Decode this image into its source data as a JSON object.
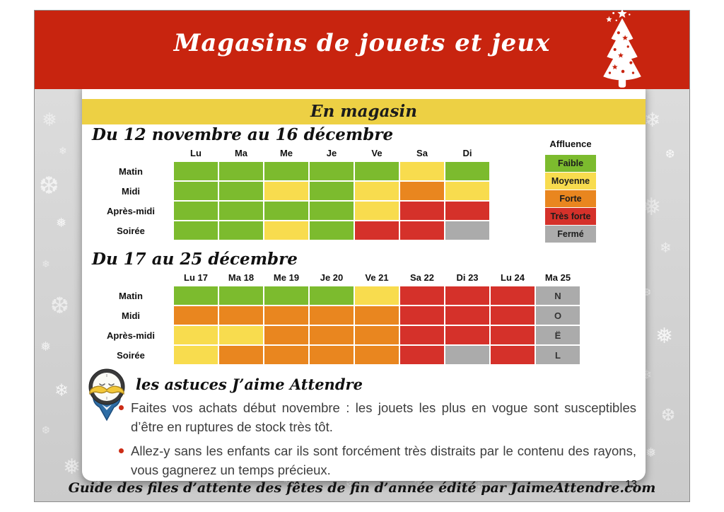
{
  "header": {
    "title": "Magasins de jouets et jeux"
  },
  "affluence_colors": {
    "faible": "#7cbb2e",
    "moyenne": "#f8dc4e",
    "forte": "#e9861f",
    "tres_forte": "#d5312a",
    "ferme": "#ababab"
  },
  "card": {
    "banner": "En magasin",
    "legend": {
      "title": "Affluence",
      "items": [
        {
          "label": "Faible",
          "level": "faible"
        },
        {
          "label": "Moyenne",
          "level": "moyenne"
        },
        {
          "label": "Forte",
          "level": "forte"
        },
        {
          "label": "Très forte",
          "level": "tres_forte"
        },
        {
          "label": "Fermé",
          "level": "ferme"
        }
      ]
    },
    "sections": [
      {
        "title": "Du 12 novembre au 16 décembre",
        "columns": [
          "Lu",
          "Ma",
          "Me",
          "Je",
          "Ve",
          "Sa",
          "Di"
        ],
        "rows": [
          "Matin",
          "Midi",
          "Après-midi",
          "Soirée"
        ],
        "cells": [
          [
            "faible",
            "faible",
            "faible",
            "faible",
            "faible",
            "moyenne",
            "faible"
          ],
          [
            "faible",
            "faible",
            "moyenne",
            "faible",
            "moyenne",
            "forte",
            "moyenne"
          ],
          [
            "faible",
            "faible",
            "faible",
            "faible",
            "moyenne",
            "tres_forte",
            "tres_forte"
          ],
          [
            "faible",
            "faible",
            "moyenne",
            "faible",
            "tres_forte",
            "tres_forte",
            "ferme"
          ]
        ]
      },
      {
        "title": "Du 17 au 25 décembre",
        "columns": [
          "Lu 17",
          "Ma 18",
          "Me 19",
          "Je 20",
          "Ve 21",
          "Sa 22",
          "Di 23",
          "Lu 24",
          "Ma 25"
        ],
        "rows": [
          "Matin",
          "Midi",
          "Après-midi",
          "Soirée"
        ],
        "cells": [
          [
            "faible",
            "faible",
            "faible",
            "faible",
            "moyenne",
            "tres_forte",
            "tres_forte",
            "tres_forte",
            "ferme"
          ],
          [
            "forte",
            "forte",
            "forte",
            "forte",
            "forte",
            "tres_forte",
            "tres_forte",
            "tres_forte",
            "ferme"
          ],
          [
            "moyenne",
            "moyenne",
            "forte",
            "forte",
            "forte",
            "tres_forte",
            "tres_forte",
            "tres_forte",
            "ferme"
          ],
          [
            "moyenne",
            "forte",
            "forte",
            "forte",
            "forte",
            "tres_forte",
            "ferme",
            "tres_forte",
            "ferme"
          ]
        ],
        "letters_column": {
          "index": 8,
          "letters": [
            "N",
            "O",
            "Ë",
            "L"
          ]
        }
      }
    ]
  },
  "tips": {
    "heading": "les astuces  J’aime Attendre",
    "bullets": [
      "Faites vos achats début novembre : les jouets les plus en vogue sont susceptibles d’être en ruptures de stock très tôt.",
      "Allez-y sans les enfants car ils sont forcément très distraits par le contenu des rayons, vous gagnerez un temps précieux."
    ]
  },
  "footer": {
    "text": "Guide des files d’attente des fêtes de fin d’année édité par  JaimeAttendre.com",
    "page_number": "13"
  }
}
